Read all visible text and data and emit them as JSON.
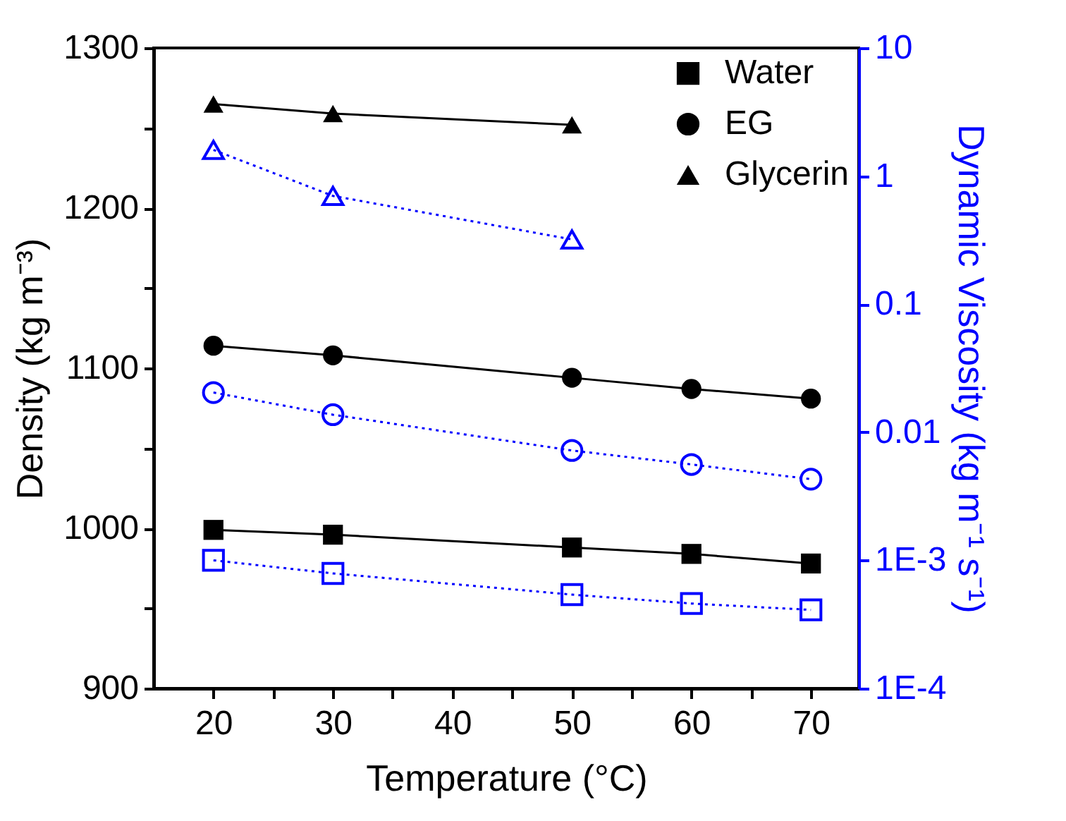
{
  "chart_data": {
    "type": "line",
    "xlabel": "Temperature (°C)",
    "ylabel": "Density (kg m⁻³)",
    "y2label": "Dynamic Viscosity (kg m⁻¹ s⁻¹)",
    "xlim": [
      15,
      74
    ],
    "xticks": [
      20,
      {
        "value": 25,
        "label": null
      },
      30,
      {
        "value": 35,
        "label": null
      },
      40,
      {
        "value": 45,
        "label": null
      },
      50,
      {
        "value": 55,
        "label": null
      },
      60,
      {
        "value": 65,
        "label": null
      },
      70
    ],
    "ylim": [
      900,
      1300
    ],
    "yticks": [
      900,
      {
        "value": 950,
        "label": null
      },
      1000,
      {
        "value": 1050,
        "label": null
      },
      1100,
      {
        "value": 1150,
        "label": null
      },
      1200,
      {
        "value": 1250,
        "label": null
      },
      1300
    ],
    "y2lim": [
      0.0001,
      10
    ],
    "y2ticks": [
      {
        "value": 0.0001,
        "label": "1E-4"
      },
      {
        "value": 0.001,
        "label": "1E-3"
      },
      0.01,
      0.1,
      1,
      10
    ],
    "log": "y2",
    "grid": false,
    "legend": "top right",
    "series": [
      {
        "name": "Water",
        "color": "#000000",
        "marker": "square",
        "line_style": "solid",
        "x": [
          20,
          30,
          50,
          60,
          70
        ],
        "values": [
          999,
          996,
          988,
          984,
          978
        ]
      },
      {
        "name": "EG",
        "color": "#000000",
        "marker": "circle",
        "line_style": "solid",
        "x": [
          20,
          30,
          50,
          60,
          70
        ],
        "values": [
          1114,
          1108,
          1094,
          1087,
          1081
        ]
      },
      {
        "name": "Glycerin",
        "color": "#000000",
        "marker": "triangle",
        "line_style": "solid",
        "x": [
          20,
          30,
          50
        ],
        "values": [
          1265,
          1259,
          1252
        ]
      },
      {
        "color": "#0000ff",
        "marker": "square",
        "line_style": "dotted",
        "axis": "y2",
        "x": [
          20,
          30,
          50,
          60,
          70
        ],
        "values": [
          0.001,
          0.00079,
          0.00054,
          0.00046,
          0.00041
        ]
      },
      {
        "color": "#0000ff",
        "marker": "circle",
        "line_style": "dotted",
        "axis": "y2",
        "x": [
          20,
          30,
          50,
          60,
          70
        ],
        "values": [
          0.0204,
          0.0137,
          0.0072,
          0.0056,
          0.0043
        ]
      },
      {
        "color": "#0000ff",
        "marker": "triangle",
        "line_style": "dotted",
        "axis": "y2",
        "x": [
          20,
          30,
          50
        ],
        "values": [
          1.6,
          0.7,
          0.32
        ]
      }
    ]
  }
}
